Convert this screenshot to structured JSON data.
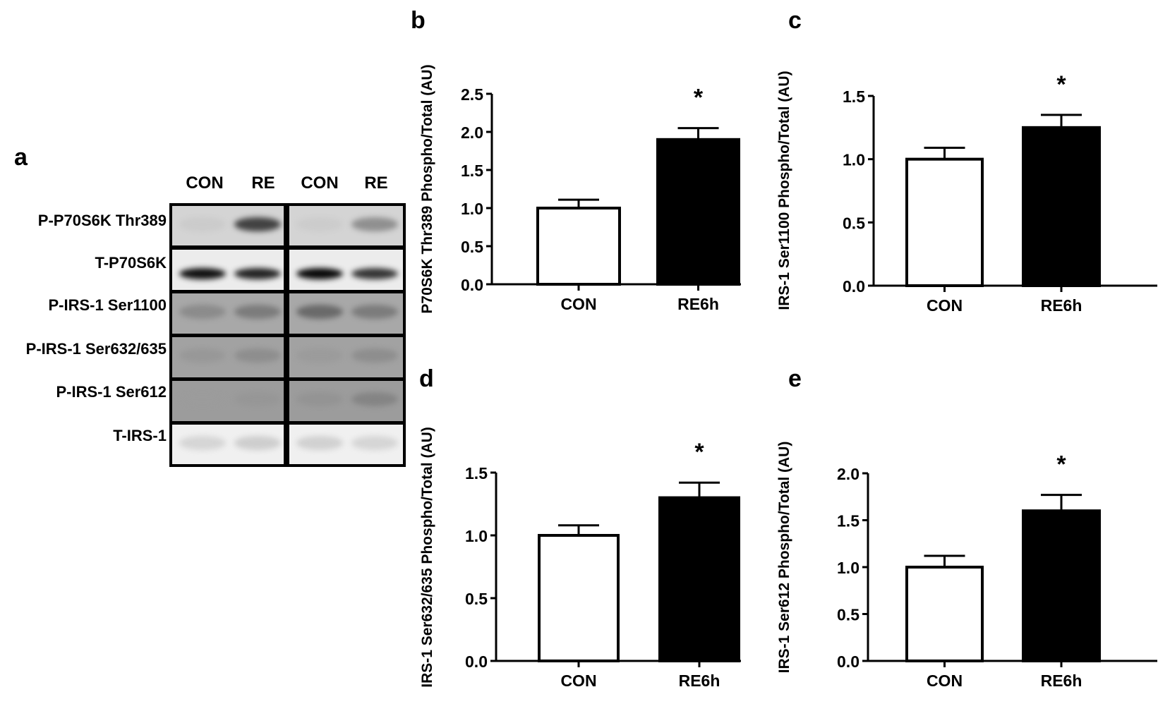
{
  "panel_a": {
    "letter": "a",
    "column_labels": [
      "CON",
      "RE",
      "CON",
      "RE"
    ],
    "rows": [
      {
        "label": "P-P70S6K Thr389",
        "bg": "#d4d4d4",
        "bands": [
          0.05,
          0.75,
          0.03,
          0.45
        ]
      },
      {
        "label": "T-P70S6K",
        "bg": "#ececec",
        "bands": [
          0.9,
          0.85,
          0.95,
          0.8
        ]
      },
      {
        "label": "P-IRS-1 Ser1100",
        "bg": "#a8a8a8",
        "bands": [
          0.35,
          0.45,
          0.55,
          0.45
        ]
      },
      {
        "label": "P-IRS-1 Ser632/635",
        "bg": "#a2a2a2",
        "bands": [
          0.2,
          0.3,
          0.15,
          0.3
        ]
      },
      {
        "label": "P-IRS-1 Ser612",
        "bg": "#9c9c9c",
        "bands": [
          0.05,
          0.15,
          0.2,
          0.35
        ]
      },
      {
        "label": "T-IRS-1",
        "bg": "#f0f0f0",
        "bands": [
          0.15,
          0.2,
          0.18,
          0.15
        ]
      }
    ]
  },
  "chart_data": [
    {
      "panel": "b",
      "type": "bar",
      "title": "",
      "xlabel": "",
      "ylabel": "P70S6K Thr389 Phospho/Total (AU)",
      "categories": [
        "CON",
        "RE6h"
      ],
      "values": [
        1.0,
        1.9
      ],
      "error_upper": [
        1.11,
        2.05
      ],
      "significance": [
        "",
        "*"
      ],
      "bar_colors": [
        "#ffffff",
        "#000000"
      ],
      "ylim": [
        0,
        2.5
      ],
      "yticks": [
        "0.0",
        "0.5",
        "1.0",
        "1.5",
        "2.0",
        "2.5"
      ],
      "grid": false,
      "legend": null
    },
    {
      "panel": "c",
      "type": "bar",
      "title": "",
      "xlabel": "",
      "ylabel": "IRS-1 Ser1100 Phospho/Total (AU)",
      "categories": [
        "CON",
        "RE6h"
      ],
      "values": [
        1.0,
        1.25
      ],
      "error_upper": [
        1.09,
        1.35
      ],
      "significance": [
        "",
        "*"
      ],
      "bar_colors": [
        "#ffffff",
        "#000000"
      ],
      "ylim": [
        0,
        1.5
      ],
      "yticks": [
        "0.0",
        "0.5",
        "1.0",
        "1.5"
      ],
      "grid": false,
      "legend": null
    },
    {
      "panel": "d",
      "type": "bar",
      "title": "",
      "xlabel": "",
      "ylabel": "IRS-1 Ser632/635 Phospho/Total (AU)",
      "categories": [
        "CON",
        "RE6h"
      ],
      "values": [
        1.0,
        1.3
      ],
      "error_upper": [
        1.08,
        1.42
      ],
      "significance": [
        "",
        "*"
      ],
      "bar_colors": [
        "#ffffff",
        "#000000"
      ],
      "ylim": [
        0,
        1.5
      ],
      "yticks": [
        "0.0",
        "0.5",
        "1.0",
        "1.5"
      ],
      "grid": false,
      "legend": null
    },
    {
      "panel": "e",
      "type": "bar",
      "title": "",
      "xlabel": "",
      "ylabel": "IRS-1 Ser612 Phospho/Total (AU)",
      "categories": [
        "CON",
        "RE6h"
      ],
      "values": [
        1.0,
        1.6
      ],
      "error_upper": [
        1.12,
        1.77
      ],
      "significance": [
        "",
        "*"
      ],
      "bar_colors": [
        "#ffffff",
        "#000000"
      ],
      "ylim": [
        0,
        2.0
      ],
      "yticks": [
        "0.0",
        "0.5",
        "1.0",
        "1.5",
        "2.0"
      ],
      "grid": false,
      "legend": null
    }
  ]
}
